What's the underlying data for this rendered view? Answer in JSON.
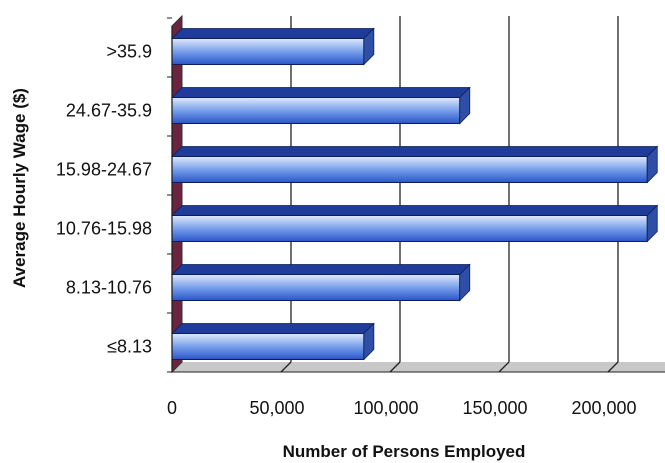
{
  "chart_data": {
    "type": "bar",
    "orientation": "horizontal",
    "style": "3d",
    "categories": [
      "≤8.13",
      "8.13-10.76",
      "10.76-15.98",
      "15.98-24.67",
      "24.67-35.9",
      ">35.9"
    ],
    "values": [
      88000,
      132000,
      218000,
      218000,
      132000,
      88000
    ],
    "xlabel": "Number of Persons Employed",
    "ylabel": "Average Hourly Wage ($)",
    "xlim": [
      0,
      225000
    ],
    "xticks": [
      0,
      50000,
      100000,
      150000,
      200000
    ],
    "xtick_labels": [
      "0",
      "50,000",
      "100,000",
      "150,000",
      "200,000"
    ],
    "grid": true,
    "colors": {
      "bar_light": "#dfe9fb",
      "bar_dark": "#2a55c8",
      "bar_end": "#2f4fa6",
      "bar_top": "#1f3c9a",
      "wall": "#6b2440",
      "floor": "#c8c8c8",
      "gridline": "#222222"
    }
  }
}
